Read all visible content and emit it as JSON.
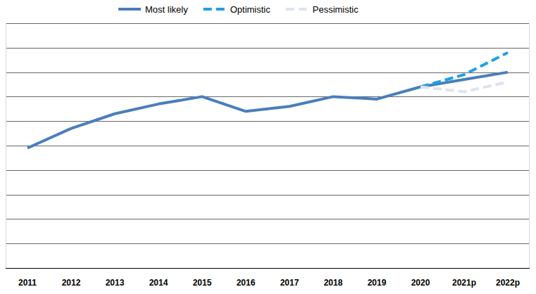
{
  "chart_data": {
    "type": "line",
    "categories": [
      "2011",
      "2012",
      "2013",
      "2014",
      "2015",
      "2016",
      "2017",
      "2018",
      "2019",
      "2020",
      "2021p",
      "2022p"
    ],
    "series": [
      {
        "name": "Most likely",
        "color": "#4a7ebb",
        "line_style": "solid",
        "values": [
          4.9,
          5.7,
          6.3,
          6.7,
          7.0,
          6.4,
          6.6,
          7.0,
          6.9,
          7.4,
          7.7,
          8.0
        ]
      },
      {
        "name": "Optimistic",
        "color": "#1f9fe3",
        "line_style": "dashed",
        "values": [
          null,
          null,
          null,
          null,
          null,
          null,
          null,
          null,
          null,
          7.4,
          7.9,
          8.8
        ]
      },
      {
        "name": "Pessimistic",
        "color": "#dde3ed",
        "line_style": "dashed",
        "values": [
          null,
          null,
          null,
          null,
          null,
          null,
          null,
          null,
          null,
          7.4,
          7.2,
          7.6
        ]
      }
    ],
    "ylim": [
      0,
      10
    ],
    "yticks": [
      0,
      1,
      2,
      3,
      4,
      5,
      6,
      7,
      8,
      9,
      10
    ],
    "grid": true,
    "legend": "top",
    "tick_labels": "x"
  }
}
